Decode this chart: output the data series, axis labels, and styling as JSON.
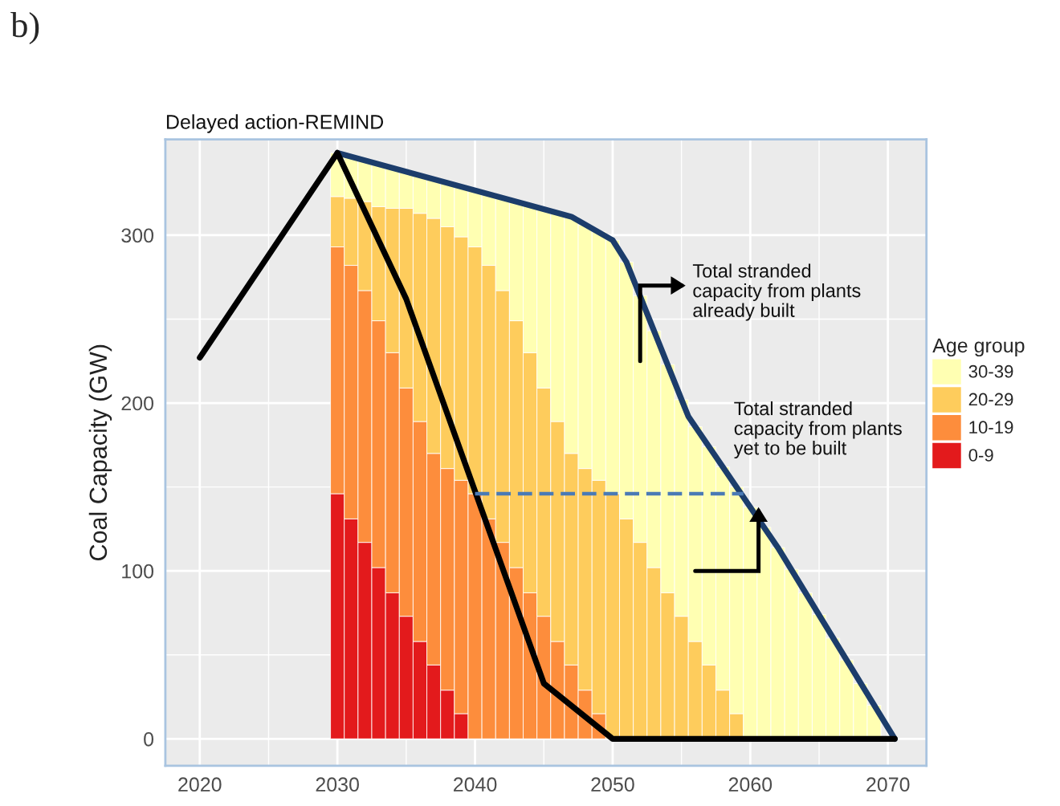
{
  "chart_data": {
    "type": "bar",
    "stacked": true,
    "title": "Delayed action-REMIND",
    "ylabel": "Coal Capacity (GW)",
    "legend_title": "Age group",
    "legend": "right",
    "grid": true,
    "x": [
      2030,
      2031,
      2032,
      2033,
      2034,
      2035,
      2036,
      2037,
      2038,
      2039,
      2040,
      2041,
      2042,
      2043,
      2044,
      2045,
      2046,
      2047,
      2048,
      2049,
      2050,
      2051,
      2052,
      2053,
      2054,
      2055,
      2056,
      2057,
      2058,
      2059,
      2060,
      2061,
      2062,
      2063,
      2064,
      2065,
      2066,
      2067,
      2068,
      2069
    ],
    "series": [
      {
        "name": "0-9",
        "color": "#e31a1c",
        "values": [
          146,
          131,
          117,
          102,
          87,
          73,
          58,
          44,
          29,
          15,
          null,
          null,
          null,
          null,
          null,
          null,
          null,
          null,
          null,
          null,
          null,
          null,
          null,
          null,
          null,
          null,
          null,
          null,
          null,
          null,
          null,
          null,
          null,
          null,
          null,
          null,
          null,
          null,
          null,
          null
        ]
      },
      {
        "name": "10-19",
        "color": "#fd8d3c",
        "values": [
          147,
          151,
          150,
          147,
          143,
          136,
          131,
          126,
          132,
          139,
          146,
          131,
          117,
          102,
          87,
          73,
          58,
          44,
          29,
          15,
          null,
          null,
          null,
          null,
          null,
          null,
          null,
          null,
          null,
          null,
          null,
          null,
          null,
          null,
          null,
          null,
          null,
          null,
          null,
          null
        ]
      },
      {
        "name": "20-29",
        "color": "#fecc5c",
        "values": [
          30,
          40,
          53,
          68,
          86,
          107,
          124,
          140,
          144,
          145,
          147,
          151,
          150,
          147,
          143,
          136,
          131,
          126,
          132,
          139,
          146,
          131,
          117,
          102,
          87,
          73,
          58,
          44,
          29,
          15,
          null,
          null,
          null,
          null,
          null,
          null,
          null,
          null,
          null,
          null
        ]
      },
      {
        "name": "30-39",
        "color": "#ffffb2",
        "values": [
          26,
          25,
          25,
          25,
          24,
          22,
          23,
          23,
          26,
          30,
          34,
          43,
          55,
          71,
          88,
          106,
          124,
          141,
          145,
          148,
          151,
          153,
          147,
          141,
          136,
          129,
          128,
          130,
          133,
          135,
          138,
          126,
          114,
          101,
          87,
          74,
          60,
          47,
          33,
          20
        ]
      },
      {
        "type": "line",
        "color": "#1c3d6b",
        "line_style": "solid",
        "x": [
          2030,
          2047,
          2050,
          2051,
          2055.5,
          2062,
          2070.5
        ],
        "values": [
          349,
          311,
          297,
          284,
          192,
          114,
          0
        ]
      },
      {
        "type": "line",
        "color": "#000000",
        "line_style": "solid",
        "x": [
          2020,
          2030,
          2035,
          2045,
          2050,
          2070.5
        ],
        "values": [
          227,
          349,
          262,
          33,
          0,
          0
        ]
      },
      {
        "type": "line",
        "color": "#4a7ab5",
        "line_style": "dashed",
        "x": [
          2040,
          2059.5
        ],
        "values": [
          146,
          146
        ]
      }
    ],
    "xlim": [
      2017.5,
      2072.8
    ],
    "xticks": [
      2020,
      2030,
      2040,
      2050,
      2060,
      2070
    ],
    "ylim": [
      -16,
      357
    ],
    "yticks": [
      0,
      100,
      200,
      300
    ],
    "annotations": [
      "b)",
      "Total stranded\ncapacity from plants\nalready built",
      "Total stranded\ncapacity from plants\nyet to be built"
    ]
  }
}
